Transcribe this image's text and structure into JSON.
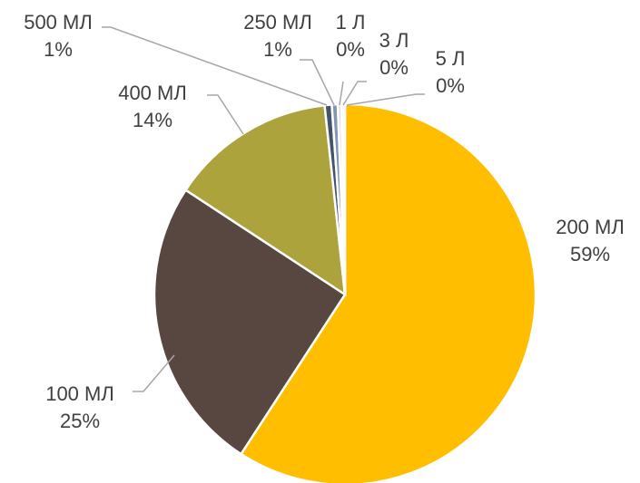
{
  "chart_data": {
    "type": "pie",
    "title": "",
    "slices": [
      {
        "label": "200 МЛ",
        "value": 59,
        "pct_label": "59%",
        "color": "#ffbf00"
      },
      {
        "label": "100 МЛ",
        "value": 25,
        "pct_label": "25%",
        "color": "#574740"
      },
      {
        "label": "400 МЛ",
        "value": 14,
        "pct_label": "14%",
        "color": "#aca33c"
      },
      {
        "label": "500 МЛ",
        "value": 0.6,
        "pct_label": "1%",
        "color": "#44546a"
      },
      {
        "label": "250 МЛ",
        "value": 0.5,
        "pct_label": "1%",
        "color": "#8497b0"
      },
      {
        "label": "1 Л",
        "value": 0.3,
        "pct_label": "0%",
        "color": "#d6dce4"
      },
      {
        "label": "3 Л",
        "value": 0.2,
        "pct_label": "0%",
        "color": "#bfbfbf"
      },
      {
        "label": "5 Л",
        "value": 0.1,
        "pct_label": "0%",
        "color": "#e7e6e6"
      }
    ],
    "legend": "none",
    "labels": "outside with leader lines"
  }
}
